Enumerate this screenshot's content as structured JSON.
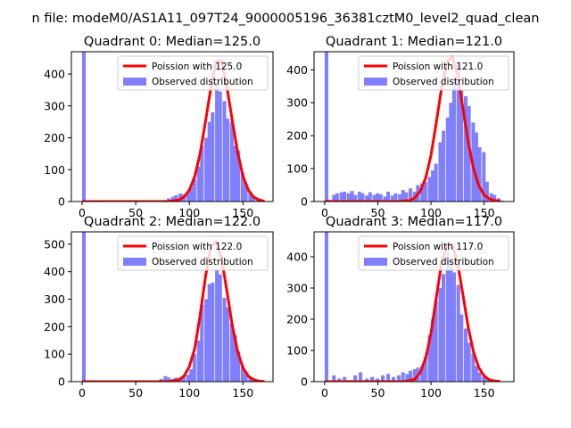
{
  "figure_title": "n file: modeM0/AS1A11_097T24_9000005196_36381cztM0_level2_quad_clean",
  "colors": {
    "poisson": "#ff0000",
    "observed": "#8080ff",
    "axis": "#000000"
  },
  "chart_data": [
    {
      "type": "bar",
      "title": "Quadrant 0: Median=125.0",
      "median": 125.0,
      "xlim": [
        -10,
        178
      ],
      "ylim": [
        0,
        470
      ],
      "xticks": [
        0,
        50,
        100,
        150
      ],
      "yticks": [
        0,
        100,
        200,
        300,
        400
      ],
      "legend": {
        "position": "top-right",
        "poisson_label": "Poission with 125.0",
        "observed_label": "Observed distribution"
      },
      "bin_width": 3.4,
      "histogram": {
        "x": [
          0,
          71,
          75,
          79,
          83,
          86,
          90,
          93,
          97,
          100,
          103,
          107,
          110,
          114,
          117,
          120,
          124,
          127,
          131,
          134,
          138,
          141,
          144,
          148,
          151,
          155,
          158,
          162,
          165
        ],
        "y": [
          470,
          3,
          5,
          10,
          15,
          20,
          25,
          22,
          30,
          45,
          70,
          110,
          175,
          200,
          250,
          280,
          375,
          345,
          315,
          260,
          250,
          175,
          160,
          90,
          55,
          30,
          15,
          8,
          3
        ]
      },
      "poisson_curve": {
        "x": [
          0,
          80,
          90,
          95,
          100,
          105,
          110,
          115,
          120,
          125,
          130,
          135,
          140,
          145,
          150,
          155,
          160,
          165,
          170
        ],
        "y": [
          0,
          0,
          5,
          14,
          36,
          78,
          150,
          250,
          355,
          440,
          440,
          360,
          255,
          155,
          80,
          36,
          14,
          5,
          1
        ]
      }
    },
    {
      "type": "bar",
      "title": "Quadrant 1: Median=121.0",
      "median": 121.0,
      "xlim": [
        -10,
        178
      ],
      "ylim": [
        0,
        455
      ],
      "xticks": [
        0,
        50,
        100,
        150
      ],
      "yticks": [
        0,
        100,
        200,
        300,
        400
      ],
      "legend": {
        "position": "top-right",
        "poisson_label": "Poission with 121.0",
        "observed_label": "Observed distribution"
      },
      "bin_width": 3.4,
      "histogram": {
        "x": [
          0,
          3,
          7,
          10,
          14,
          17,
          21,
          24,
          27,
          31,
          34,
          38,
          41,
          45,
          48,
          51,
          55,
          58,
          62,
          65,
          69,
          72,
          75,
          79,
          83,
          86,
          90,
          93,
          97,
          100,
          103,
          107,
          110,
          114,
          117,
          120,
          124,
          127,
          131,
          134,
          138,
          141,
          144,
          148,
          151,
          155,
          158,
          162,
          165
        ],
        "y": [
          455,
          5,
          20,
          25,
          28,
          30,
          25,
          32,
          20,
          30,
          25,
          18,
          28,
          20,
          25,
          22,
          15,
          30,
          18,
          25,
          22,
          35,
          28,
          40,
          30,
          50,
          55,
          60,
          75,
          95,
          115,
          180,
          215,
          255,
          300,
          375,
          425,
          340,
          320,
          290,
          240,
          210,
          165,
          150,
          60,
          25,
          20,
          10,
          3
        ]
      },
      "poisson_curve": {
        "x": [
          0,
          70,
          80,
          85,
          90,
          95,
          100,
          105,
          110,
          115,
          120,
          125,
          130,
          135,
          140,
          145,
          150,
          155,
          160,
          165
        ],
        "y": [
          0,
          0,
          3,
          12,
          32,
          72,
          140,
          240,
          345,
          425,
          440,
          385,
          285,
          180,
          100,
          48,
          20,
          8,
          3,
          1
        ]
      }
    },
    {
      "type": "bar",
      "title": "Quadrant 2: Median=122.0",
      "median": 122.0,
      "xlim": [
        -10,
        178
      ],
      "ylim": [
        0,
        545
      ],
      "xticks": [
        0,
        50,
        100,
        150
      ],
      "yticks": [
        0,
        100,
        200,
        300,
        400,
        500
      ],
      "legend": {
        "position": "top-right",
        "poisson_label": "Poission with 122.0",
        "observed_label": "Observed distribution"
      },
      "bin_width": 3.4,
      "histogram": {
        "x": [
          0,
          72,
          76,
          79,
          83,
          86,
          90,
          93,
          97,
          100,
          103,
          107,
          110,
          114,
          117,
          120,
          124,
          127,
          131,
          134,
          138,
          141,
          144,
          148,
          151,
          155,
          158,
          162
        ],
        "y": [
          545,
          10,
          20,
          15,
          10,
          15,
          8,
          20,
          25,
          45,
          100,
          150,
          280,
          300,
          355,
          360,
          405,
          390,
          305,
          270,
          210,
          170,
          110,
          60,
          30,
          15,
          8,
          3
        ]
      },
      "poisson_curve": {
        "x": [
          0,
          80,
          90,
          95,
          100,
          105,
          110,
          115,
          120,
          125,
          130,
          135,
          140,
          145,
          150,
          155,
          160,
          165,
          170
        ],
        "y": [
          0,
          0,
          6,
          20,
          55,
          120,
          240,
          380,
          490,
          510,
          450,
          330,
          205,
          110,
          50,
          20,
          7,
          2,
          1
        ]
      }
    },
    {
      "type": "bar",
      "title": "Quadrant 3: Median=117.0",
      "median": 117.0,
      "xlim": [
        -10,
        178
      ],
      "ylim": [
        0,
        480
      ],
      "xticks": [
        0,
        50,
        100,
        150
      ],
      "yticks": [
        0,
        100,
        200,
        300,
        400
      ],
      "legend": {
        "position": "top-right",
        "poisson_label": "Poission with 117.0",
        "observed_label": "Observed distribution"
      },
      "bin_width": 3.4,
      "histogram": {
        "x": [
          0,
          7,
          12,
          17,
          22,
          27,
          32,
          38,
          43,
          48,
          53,
          58,
          63,
          68,
          72,
          76,
          79,
          83,
          86,
          90,
          93,
          97,
          100,
          103,
          107,
          110,
          114,
          117,
          120,
          124,
          127,
          131,
          134,
          138,
          141,
          144,
          148,
          151,
          155,
          158
        ],
        "y": [
          480,
          20,
          10,
          15,
          5,
          20,
          30,
          10,
          15,
          10,
          20,
          25,
          15,
          20,
          30,
          25,
          35,
          40,
          45,
          50,
          80,
          150,
          200,
          260,
          300,
          345,
          430,
          390,
          350,
          310,
          215,
          170,
          125,
          90,
          50,
          30,
          15,
          8,
          3,
          1
        ]
      },
      "poisson_curve": {
        "x": [
          0,
          75,
          85,
          90,
          95,
          100,
          105,
          110,
          115,
          120,
          125,
          130,
          135,
          140,
          145,
          150,
          155,
          160,
          165
        ],
        "y": [
          0,
          0,
          8,
          30,
          75,
          155,
          270,
          380,
          440,
          440,
          380,
          280,
          175,
          95,
          45,
          18,
          6,
          2,
          1
        ]
      }
    }
  ]
}
